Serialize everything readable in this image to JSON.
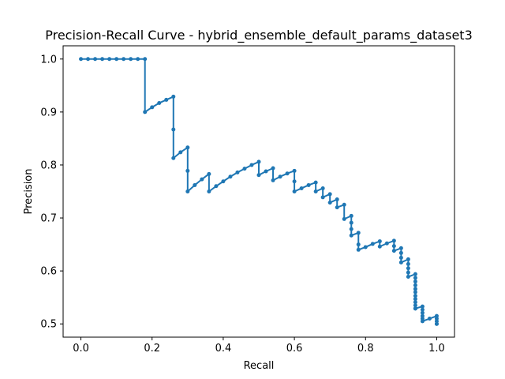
{
  "chart_data": {
    "type": "line",
    "title": "Precision-Recall Curve - hybrid_ensemble_default_params_dataset3",
    "xlabel": "Recall",
    "ylabel": "Precision",
    "xlim": [
      -0.05,
      1.05
    ],
    "ylim": [
      0.475,
      1.025
    ],
    "xticks": [
      0.0,
      0.2,
      0.4,
      0.6,
      0.8,
      1.0
    ],
    "xtick_labels": [
      "0.0",
      "0.2",
      "0.4",
      "0.6",
      "0.8",
      "1.0"
    ],
    "yticks": [
      0.5,
      0.6,
      0.7,
      0.8,
      0.9,
      1.0
    ],
    "ytick_labels": [
      "0.5",
      "0.6",
      "0.7",
      "0.8",
      "0.9",
      "1.0"
    ],
    "grid": false,
    "color": "#1f77b4",
    "marker": "circle",
    "series": [
      {
        "x": [
          0.0,
          0.02,
          0.04,
          0.06,
          0.08,
          0.1,
          0.12,
          0.14,
          0.16,
          0.18,
          0.18,
          0.2,
          0.22,
          0.24,
          0.26,
          0.26,
          0.26,
          0.28,
          0.3,
          0.3,
          0.3,
          0.32,
          0.34,
          0.36,
          0.36,
          0.38,
          0.4,
          0.42,
          0.44,
          0.46,
          0.48,
          0.5,
          0.5,
          0.52,
          0.54,
          0.54,
          0.56,
          0.58,
          0.6,
          0.6,
          0.6,
          0.62,
          0.64,
          0.66,
          0.66,
          0.68,
          0.68,
          0.7,
          0.7,
          0.72,
          0.72,
          0.74,
          0.74,
          0.76,
          0.76,
          0.76,
          0.76,
          0.78,
          0.78,
          0.78,
          0.8,
          0.82,
          0.84,
          0.84,
          0.86,
          0.88,
          0.88,
          0.88,
          0.9,
          0.9,
          0.9,
          0.9,
          0.92,
          0.92,
          0.92,
          0.92,
          0.92,
          0.94,
          0.94,
          0.94,
          0.94,
          0.94,
          0.94,
          0.94,
          0.94,
          0.94,
          0.94,
          0.94,
          0.94,
          0.94,
          0.96,
          0.96,
          0.96,
          0.96,
          0.96,
          0.96,
          0.98,
          1.0,
          1.0,
          1.0,
          1.0,
          1.0
        ],
        "y": [
          1.0,
          1.0,
          1.0,
          1.0,
          1.0,
          1.0,
          1.0,
          1.0,
          1.0,
          1.0,
          0.9,
          0.909,
          0.917,
          0.923,
          0.929,
          0.867,
          0.813,
          0.824,
          0.833,
          0.789,
          0.75,
          0.762,
          0.773,
          0.783,
          0.75,
          0.76,
          0.769,
          0.778,
          0.786,
          0.793,
          0.8,
          0.806,
          0.781,
          0.788,
          0.794,
          0.771,
          0.778,
          0.784,
          0.789,
          0.769,
          0.75,
          0.756,
          0.762,
          0.767,
          0.75,
          0.756,
          0.739,
          0.745,
          0.729,
          0.735,
          0.72,
          0.725,
          0.698,
          0.704,
          0.691,
          0.679,
          0.667,
          0.672,
          0.65,
          0.64,
          0.645,
          0.651,
          0.656,
          0.646,
          0.652,
          0.657,
          0.647,
          0.638,
          0.643,
          0.634,
          0.625,
          0.616,
          0.622,
          0.613,
          0.605,
          0.597,
          0.589,
          0.594,
          0.587,
          0.58,
          0.573,
          0.566,
          0.56,
          0.553,
          0.547,
          0.541,
          0.535,
          0.529,
          0.529,
          0.529,
          0.533,
          0.527,
          0.521,
          0.515,
          0.51,
          0.505,
          0.51,
          0.515,
          0.51,
          0.505,
          0.5,
          0.5
        ]
      }
    ]
  }
}
